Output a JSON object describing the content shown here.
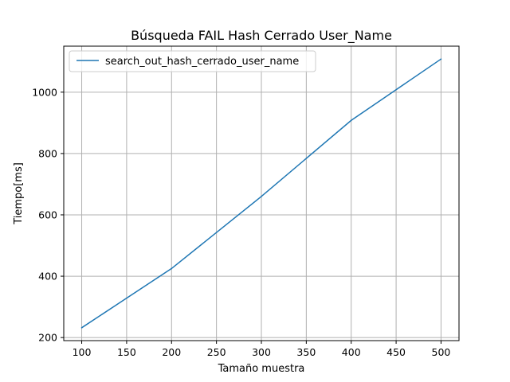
{
  "chart_data": {
    "type": "line",
    "title": "Búsqueda FAIL Hash Cerrado User_Name",
    "xlabel": "Tamaño muestra",
    "ylabel": "Tiempo[ms]",
    "xlim": [
      80,
      520
    ],
    "ylim": [
      190,
      1150
    ],
    "x_ticks": [
      100,
      150,
      200,
      250,
      300,
      350,
      400,
      450,
      500
    ],
    "y_ticks": [
      200,
      400,
      600,
      800,
      1000
    ],
    "grid": true,
    "legend_position": "top-left",
    "series": [
      {
        "name": "search_out_hash_cerrado_user_name",
        "color": "#1f77b4",
        "x": [
          100,
          200,
          300,
          400,
          500
        ],
        "y": [
          232,
          425,
          660,
          908,
          1108
        ]
      }
    ]
  }
}
